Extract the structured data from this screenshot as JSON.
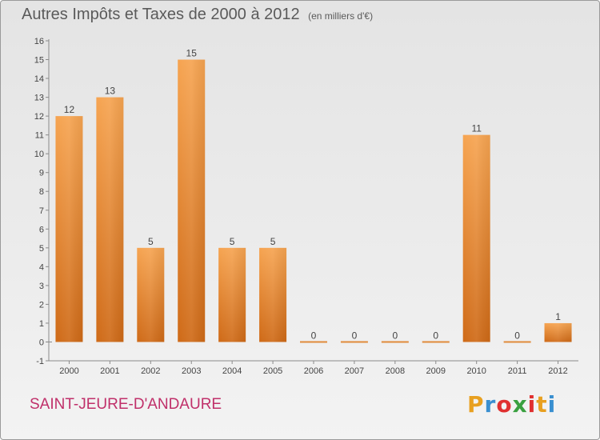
{
  "header": {
    "title": "Autres Impôts et Taxes de 2000 à 2012",
    "unit": "(en milliers d'€)"
  },
  "footer": {
    "commune": "SAINT-JEURE-D'ANDAURE",
    "logo_letters": [
      "P",
      "r",
      "o",
      "x",
      "i",
      "t",
      "i"
    ],
    "logo_colors": [
      "#e8a020",
      "#3a8fd0",
      "#e03030",
      "#3aa040",
      "#e03030",
      "#e8a020",
      "#3a8fd0"
    ]
  },
  "chart_data": {
    "type": "bar",
    "title": "Autres Impôts et Taxes de 2000 à 2012",
    "subtitle": "(en milliers d'€)",
    "categories": [
      "2000",
      "2001",
      "2002",
      "2003",
      "2004",
      "2005",
      "2006",
      "2007",
      "2008",
      "2009",
      "2010",
      "2011",
      "2012"
    ],
    "values": [
      12,
      13,
      5,
      15,
      5,
      5,
      0,
      0,
      0,
      0,
      11,
      0,
      1
    ],
    "ylim": [
      -1,
      16
    ],
    "yticks": [
      -1,
      0,
      1,
      2,
      3,
      4,
      5,
      6,
      7,
      8,
      9,
      10,
      11,
      12,
      13,
      14,
      15,
      16
    ],
    "grid": false,
    "bar_color": "#f0953a",
    "bar_color_dark": "#d8731f"
  }
}
